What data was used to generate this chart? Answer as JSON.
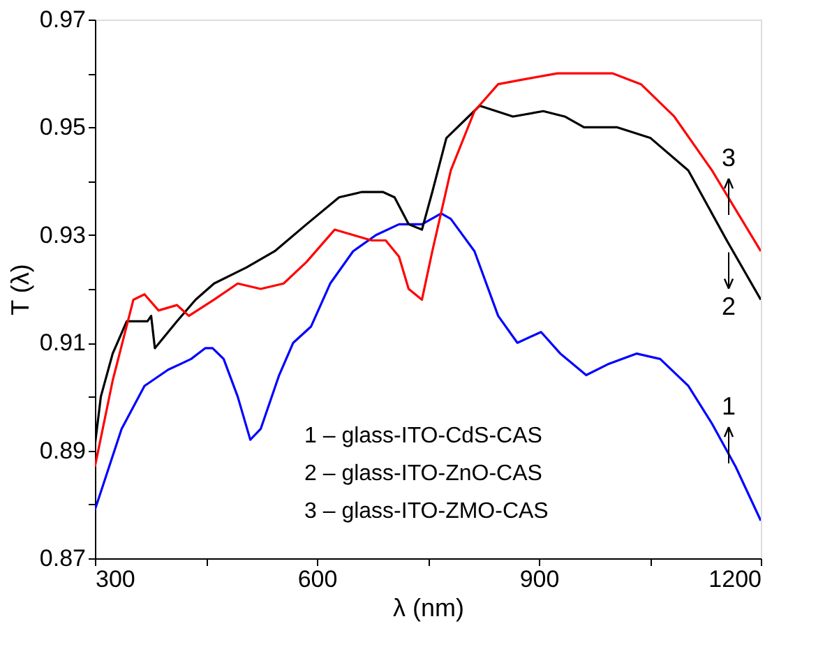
{
  "chart_data": {
    "type": "line",
    "xlabel": "λ (nm)",
    "ylabel": "T (λ)",
    "xlim": [
      300,
      1200
    ],
    "ylim": [
      0.87,
      0.97
    ],
    "xticks": [
      300,
      {
        "value": 450,
        "label": null
      },
      600,
      {
        "value": 750,
        "label": null
      },
      900,
      {
        "value": 1050,
        "label": null
      },
      1200
    ],
    "yticks": [
      0.87,
      {
        "value": 0.88,
        "label": null
      },
      0.89,
      {
        "value": 0.9,
        "label": null
      },
      0.91,
      {
        "value": 0.92,
        "label": null
      },
      0.93,
      {
        "value": 0.94,
        "label": null
      },
      0.95,
      {
        "value": 0.96,
        "label": null
      },
      0.97
    ],
    "grid": false,
    "line_style": "solid",
    "annotations": [
      "1 – glass-ITO-CdS-CAS",
      "2 – glass-ITO-ZnO-CAS",
      "3 – glass-ITO-ZMO-CAS"
    ],
    "series": [
      {
        "name": "1",
        "color": "#0000ff",
        "x": [
          300,
          336,
          367,
          399,
          430,
          449,
          459,
          474,
          493,
          510,
          524,
          549,
          568,
          592,
          618,
          649,
          680,
          711,
          742,
          768,
          781,
          813,
          845,
          871,
          903,
          929,
          964,
          993,
          1032,
          1064,
          1102,
          1134,
          1166,
          1200
        ],
        "values": [
          0.879,
          0.894,
          0.902,
          0.905,
          0.907,
          0.909,
          0.909,
          0.907,
          0.9,
          0.892,
          0.894,
          0.904,
          0.91,
          0.913,
          0.921,
          0.927,
          0.93,
          0.932,
          0.932,
          0.934,
          0.933,
          0.927,
          0.915,
          0.91,
          0.912,
          0.908,
          0.904,
          0.906,
          0.908,
          0.907,
          0.902,
          0.895,
          0.887,
          0.877
        ]
      },
      {
        "name": "2",
        "color": "#000000",
        "x": [
          300,
          308,
          324,
          343,
          361,
          371,
          376,
          381,
          393,
          411,
          436,
          461,
          505,
          543,
          586,
          630,
          661,
          689,
          705,
          724,
          742,
          756,
          775,
          820,
          865,
          906,
          935,
          961,
          1006,
          1051,
          1102,
          1154,
          1200
        ],
        "values": [
          0.891,
          0.9,
          0.908,
          0.914,
          0.914,
          0.914,
          0.915,
          0.909,
          0.911,
          0.914,
          0.918,
          0.921,
          0.924,
          0.927,
          0.932,
          0.937,
          0.938,
          0.938,
          0.937,
          0.932,
          0.931,
          0.938,
          0.948,
          0.954,
          0.952,
          0.953,
          0.952,
          0.95,
          0.95,
          0.948,
          0.942,
          0.929,
          0.918
        ]
      },
      {
        "name": "3",
        "color": "#ff0000",
        "x": [
          300,
          324,
          352,
          367,
          386,
          411,
          427,
          461,
          493,
          524,
          555,
          586,
          624,
          649,
          674,
          693,
          711,
          724,
          742,
          756,
          781,
          813,
          845,
          884,
          925,
          1000,
          1038,
          1083,
          1134,
          1200
        ],
        "values": [
          0.887,
          0.903,
          0.918,
          0.919,
          0.916,
          0.917,
          0.915,
          0.918,
          0.921,
          0.92,
          0.921,
          0.925,
          0.931,
          0.93,
          0.929,
          0.929,
          0.926,
          0.92,
          0.918,
          0.927,
          0.942,
          0.953,
          0.958,
          0.959,
          0.96,
          0.96,
          0.958,
          0.952,
          0.942,
          0.927
        ]
      }
    ]
  }
}
